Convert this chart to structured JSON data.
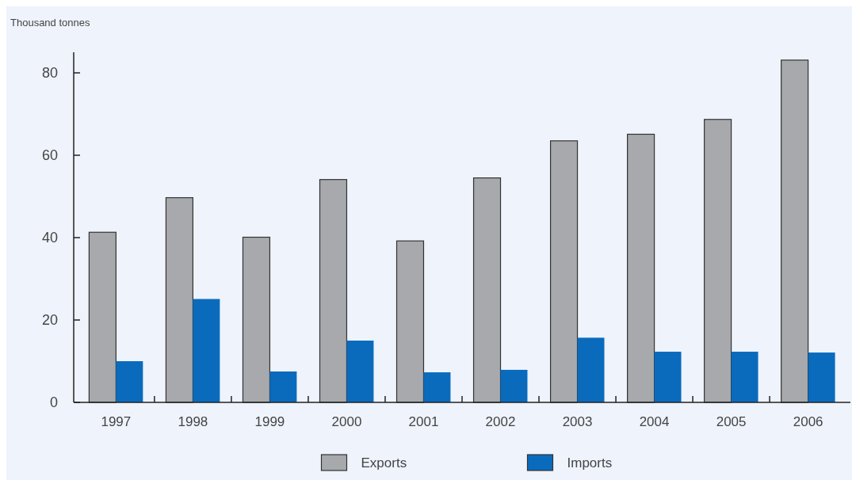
{
  "chart_data": {
    "type": "bar",
    "ylabel": "Thousand tonnes",
    "categories": [
      "1997",
      "1998",
      "1999",
      "2000",
      "2001",
      "2002",
      "2003",
      "2004",
      "2005",
      "2006"
    ],
    "series": [
      {
        "name": "Exports",
        "color": "#a7a9ac",
        "values": [
          41.3,
          49.7,
          40.1,
          54.1,
          39.2,
          54.5,
          63.5,
          65.1,
          68.7,
          83.1
        ]
      },
      {
        "name": "Imports",
        "color": "#0a6bbd",
        "values": [
          10.0,
          25.1,
          7.5,
          15.0,
          7.3,
          7.9,
          15.7,
          12.3,
          12.3,
          12.1
        ]
      }
    ],
    "ylim": [
      0,
      85
    ],
    "yticks": [
      0,
      20,
      40,
      60,
      80
    ],
    "legend": "bottom"
  }
}
